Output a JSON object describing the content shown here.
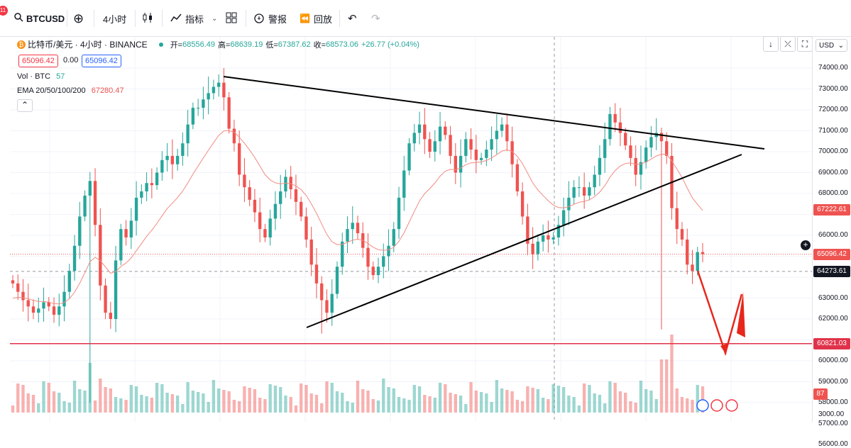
{
  "toolbar": {
    "notif_count": "11",
    "symbol": "BTCUSD",
    "interval": "4小时",
    "indicators_label": "指标",
    "alert_label": "警报",
    "replay_label": "回放"
  },
  "legend": {
    "title": "比特币/美元 · 4小时 · BINANCE",
    "open_label": "开=",
    "open": "68556.49",
    "high_label": "高=",
    "high": "68639.19",
    "low_label": "低=",
    "low": "67387.62",
    "close_label": "收=",
    "close": "68573.06",
    "change": "+26.77 (+0.04%)",
    "sell_price": "65096.42",
    "spread": "0.00",
    "buy_price": "65096.42",
    "vol_label": "Vol · BTC",
    "vol_value": "57",
    "ema_label": "EMA 20/50/100/200",
    "ema_value": "67280.47"
  },
  "axis": {
    "currency": "USD",
    "ticks": [
      "74000.00",
      "73000.00",
      "72000.00",
      "71000.00",
      "70000.00",
      "69000.00",
      "68000.00",
      "66000.00",
      "63000.00",
      "62000.00",
      "60000.00",
      "59000.00",
      "58000.00",
      "57000.00",
      "56000.00",
      "3000.00"
    ],
    "tag_ema": "67222.61",
    "tag_last": "65096.42",
    "tag_cross": "64273.61",
    "tag_support": "60821.03",
    "tag_vol": "87"
  },
  "colors": {
    "up": "#26a69a",
    "down": "#ef5350",
    "support_line": "#e0334a",
    "ema_line": "#f28b82",
    "arrow": "#e8261c"
  },
  "chart_data": {
    "type": "candlestick",
    "symbol": "BTCUSD",
    "interval": "4h",
    "ylim": [
      56000,
      74500
    ],
    "support_level": 60821.03,
    "last_price": 65096.42,
    "crosshair_price": 64273.61,
    "ema_last": 67222.61,
    "ohlc_current": {
      "open": 68556.49,
      "high": 68639.19,
      "low": 67387.62,
      "close": 68573.06
    },
    "close_path": [
      63700,
      63300,
      62900,
      62600,
      62300,
      62500,
      62800,
      62600,
      62200,
      62600,
      63300,
      64300,
      65500,
      66900,
      67900,
      68600,
      66500,
      63600,
      62300,
      62000,
      64800,
      66300,
      65900,
      66700,
      67800,
      68100,
      68500,
      68400,
      69000,
      69600,
      69800,
      69400,
      69800,
      70400,
      71300,
      72100,
      72100,
      72500,
      72800,
      73100,
      73300,
      72600,
      71100,
      70400,
      68900,
      68300,
      67700,
      67100,
      66300,
      65900,
      66800,
      67500,
      68100,
      68800,
      68200,
      67600,
      66900,
      65800,
      64600,
      63700,
      62900,
      62300,
      63200,
      64500,
      65700,
      66300,
      66600,
      66100,
      65400,
      64500,
      64100,
      64500,
      65000,
      65500,
      66300,
      67800,
      69100,
      70400,
      70900,
      71300,
      70600,
      70000,
      70500,
      71200,
      70800,
      69800,
      69000,
      69800,
      70600,
      70100,
      69600,
      69700,
      70100,
      70600,
      71000,
      71300,
      70500,
      69400,
      68100,
      66900,
      65600,
      65100,
      65700,
      66000,
      65800,
      65900,
      66500,
      67200,
      67800,
      68300,
      68300,
      67900,
      68300,
      68900,
      69700,
      70600,
      71800,
      71400,
      70900,
      70300,
      69700,
      68900,
      69500,
      70200,
      70700,
      70900,
      70500,
      69800,
      67300,
      66300,
      65800,
      64600,
      64300,
      65200,
      65100
    ]
  }
}
